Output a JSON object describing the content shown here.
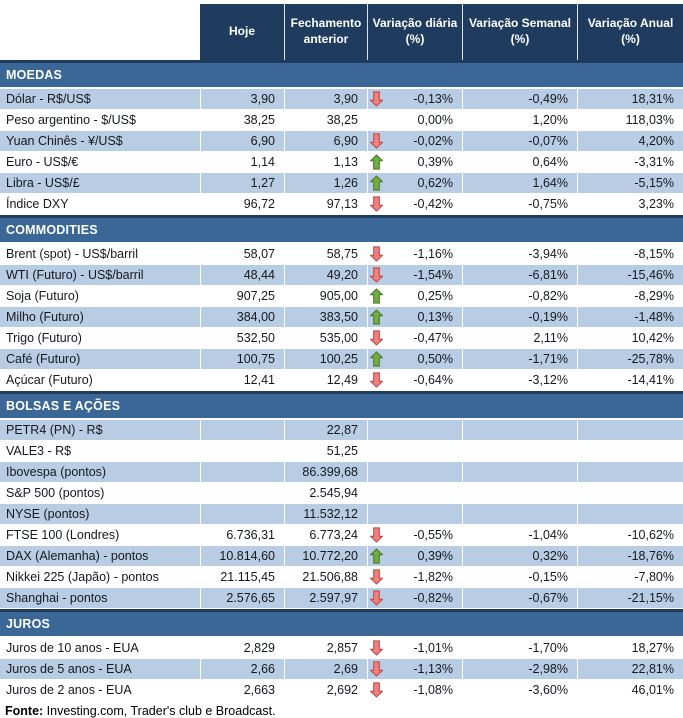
{
  "colors": {
    "header_bg": "#1f3c5f",
    "section_bg": "#3a6795",
    "row_shaded_bg": "#b8cce4",
    "up_arrow_fill": "#70ad47",
    "up_arrow_stroke": "#4e7a2b",
    "down_arrow_fill": "#f08080",
    "down_arrow_stroke": "#be4b48"
  },
  "table": {
    "columns": [
      {
        "key": "hoje",
        "label": "Hoje"
      },
      {
        "key": "fechamento",
        "label": "Fechamento anterior"
      },
      {
        "key": "var_diaria",
        "label": "Variação diária (%)"
      },
      {
        "key": "var_semanal",
        "label": "Variação Semanal (%)"
      },
      {
        "key": "var_anual",
        "label": "Variação Anual (%)"
      }
    ],
    "sections": [
      {
        "title": "MOEDAS",
        "rows": [
          {
            "label": "Dólar - R$/US$",
            "hoje": "3,90",
            "fechamento": "3,90",
            "arrow": "down",
            "var_diaria": "-0,13%",
            "var_semanal": "-0,49%",
            "var_anual": "18,31%",
            "shaded": true
          },
          {
            "label": "Peso argentino - $/US$",
            "hoje": "38,25",
            "fechamento": "38,25",
            "arrow": "",
            "var_diaria": "0,00%",
            "var_semanal": "1,20%",
            "var_anual": "118,03%",
            "shaded": false
          },
          {
            "label": "Yuan Chinês - ¥/US$",
            "hoje": "6,90",
            "fechamento": "6,90",
            "arrow": "down",
            "var_diaria": "-0,02%",
            "var_semanal": "-0,07%",
            "var_anual": "4,20%",
            "shaded": true
          },
          {
            "label": "Euro - US$/€",
            "hoje": "1,14",
            "fechamento": "1,13",
            "arrow": "up",
            "var_diaria": "0,39%",
            "var_semanal": "0,64%",
            "var_anual": "-3,31%",
            "shaded": false
          },
          {
            "label": "Libra - US$/£",
            "hoje": "1,27",
            "fechamento": "1,26",
            "arrow": "up",
            "var_diaria": "0,62%",
            "var_semanal": "1,64%",
            "var_anual": "-5,15%",
            "shaded": true
          },
          {
            "label": "Índice DXY",
            "hoje": "96,72",
            "fechamento": "97,13",
            "arrow": "down",
            "var_diaria": "-0,42%",
            "var_semanal": "-0,75%",
            "var_anual": "3,23%",
            "shaded": false
          }
        ]
      },
      {
        "title": "COMMODITIES",
        "rows": [
          {
            "label": "Brent (spot) - US$/barril",
            "hoje": "58,07",
            "fechamento": "58,75",
            "arrow": "down",
            "var_diaria": "-1,16%",
            "var_semanal": "-3,94%",
            "var_anual": "-8,15%",
            "shaded": false
          },
          {
            "label": "WTI (Futuro) - US$/barril",
            "hoje": "48,44",
            "fechamento": "49,20",
            "arrow": "down",
            "var_diaria": "-1,54%",
            "var_semanal": "-6,81%",
            "var_anual": "-15,46%",
            "shaded": true
          },
          {
            "label": "Soja (Futuro)",
            "hoje": "907,25",
            "fechamento": "905,00",
            "arrow": "up",
            "var_diaria": "0,25%",
            "var_semanal": "-0,82%",
            "var_anual": "-8,29%",
            "shaded": false
          },
          {
            "label": "Milho (Futuro)",
            "hoje": "384,00",
            "fechamento": "383,50",
            "arrow": "up",
            "var_diaria": "0,13%",
            "var_semanal": "-0,19%",
            "var_anual": "-1,48%",
            "shaded": true
          },
          {
            "label": "Trigo (Futuro)",
            "hoje": "532,50",
            "fechamento": "535,00",
            "arrow": "down",
            "var_diaria": "-0,47%",
            "var_semanal": "2,11%",
            "var_anual": "10,42%",
            "shaded": false
          },
          {
            "label": "Café (Futuro)",
            "hoje": "100,75",
            "fechamento": "100,25",
            "arrow": "up",
            "var_diaria": "0,50%",
            "var_semanal": "-1,71%",
            "var_anual": "-25,78%",
            "shaded": true
          },
          {
            "label": "Açúcar (Futuro)",
            "hoje": "12,41",
            "fechamento": "12,49",
            "arrow": "down",
            "var_diaria": "-0,64%",
            "var_semanal": "-3,12%",
            "var_anual": "-14,41%",
            "shaded": false
          }
        ]
      },
      {
        "title": "BOLSAS E AÇÕES",
        "rows": [
          {
            "label": "PETR4 (PN) - R$",
            "hoje": "",
            "fechamento": "22,87",
            "arrow": "",
            "var_diaria": "",
            "var_semanal": "",
            "var_anual": "",
            "shaded": true
          },
          {
            "label": "VALE3 - R$",
            "hoje": "",
            "fechamento": "51,25",
            "arrow": "",
            "var_diaria": "",
            "var_semanal": "",
            "var_anual": "",
            "shaded": false
          },
          {
            "label": "Ibovespa (pontos)",
            "hoje": "",
            "fechamento": "86.399,68",
            "arrow": "",
            "var_diaria": "",
            "var_semanal": "",
            "var_anual": "",
            "shaded": true
          },
          {
            "label": "S&P 500 (pontos)",
            "hoje": "",
            "fechamento": "2.545,94",
            "arrow": "",
            "var_diaria": "",
            "var_semanal": "",
            "var_anual": "",
            "shaded": false
          },
          {
            "label": "NYSE (pontos)",
            "hoje": "",
            "fechamento": "11.532,12",
            "arrow": "",
            "var_diaria": "",
            "var_semanal": "",
            "var_anual": "",
            "shaded": true
          },
          {
            "label": "FTSE 100 (Londres)",
            "hoje": "6.736,31",
            "fechamento": "6.773,24",
            "arrow": "down",
            "var_diaria": "-0,55%",
            "var_semanal": "-1,04%",
            "var_anual": "-10,62%",
            "shaded": false
          },
          {
            "label": "DAX (Alemanha) - pontos",
            "hoje": "10.814,60",
            "fechamento": "10.772,20",
            "arrow": "up",
            "var_diaria": "0,39%",
            "var_semanal": "0,32%",
            "var_anual": "-18,76%",
            "shaded": true
          },
          {
            "label": "Nikkei 225 (Japão) - pontos",
            "hoje": "21.115,45",
            "fechamento": "21.506,88",
            "arrow": "down",
            "var_diaria": "-1,82%",
            "var_semanal": "-0,15%",
            "var_anual": "-7,80%",
            "shaded": false
          },
          {
            "label": "Shanghai - pontos",
            "hoje": "2.576,65",
            "fechamento": "2.597,97",
            "arrow": "down",
            "var_diaria": "-0,82%",
            "var_semanal": "-0,67%",
            "var_anual": "-21,15%",
            "shaded": true
          }
        ]
      },
      {
        "title": "JUROS",
        "rows": [
          {
            "label": "Juros de 10 anos - EUA",
            "hoje": "2,829",
            "fechamento": "2,857",
            "arrow": "down",
            "var_diaria": "-1,01%",
            "var_semanal": "-1,70%",
            "var_anual": "18,27%",
            "shaded": false
          },
          {
            "label": "Juros de 5 anos - EUA",
            "hoje": "2,66",
            "fechamento": "2,69",
            "arrow": "down",
            "var_diaria": "-1,13%",
            "var_semanal": "-2,98%",
            "var_anual": "22,81%",
            "shaded": true
          },
          {
            "label": "Juros de 2 anos - EUA",
            "hoje": "2,663",
            "fechamento": "2,692",
            "arrow": "down",
            "var_diaria": "-1,08%",
            "var_semanal": "-3,60%",
            "var_anual": "46,01%",
            "shaded": false
          }
        ]
      }
    ]
  },
  "footer": {
    "label": "Fonte:",
    "text": " Investing.com, Trader's club e Broadcast."
  }
}
